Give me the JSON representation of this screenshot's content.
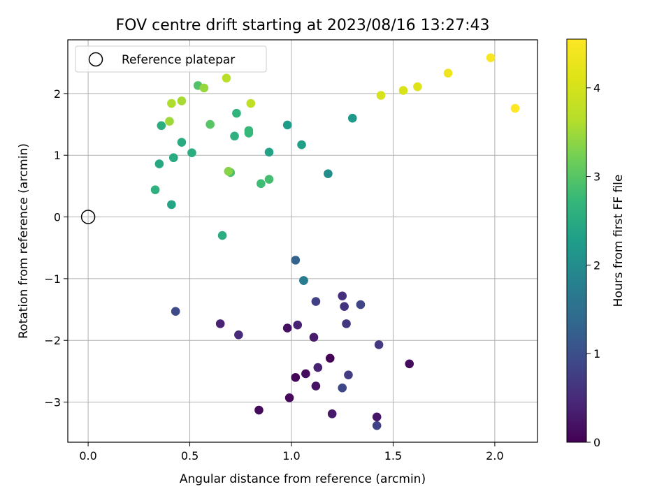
{
  "chart_data": {
    "type": "scatter",
    "title": "FOV centre drift starting at 2023/08/16 13:27:43",
    "xlabel": "Angular distance from reference (arcmin)",
    "ylabel": "Rotation from reference (arcmin)",
    "xlim": [
      -0.1,
      2.21
    ],
    "ylim": [
      -3.65,
      2.87
    ],
    "xticks": [
      0.0,
      0.5,
      1.0,
      1.5,
      2.0
    ],
    "xtick_labels": [
      "0.0",
      "0.5",
      "1.0",
      "1.5",
      "2.0"
    ],
    "yticks": [
      -3,
      -2,
      -1,
      0,
      1,
      2
    ],
    "ytick_labels": [
      "−3",
      "−2",
      "−1",
      "0",
      "1",
      "2"
    ],
    "grid": true,
    "legend": {
      "position": "top-left",
      "entries": [
        "Reference platepar"
      ]
    },
    "reference_point": {
      "x": 0.0,
      "y": 0.0
    },
    "colorbar": {
      "label": "Hours from first FF file",
      "range": [
        0,
        4.55
      ],
      "ticks": [
        0,
        1,
        2,
        3,
        4
      ],
      "tick_labels": [
        "0",
        "1",
        "2",
        "3",
        "4"
      ],
      "colormap": "viridis"
    },
    "points": [
      {
        "x": 0.84,
        "y": -3.13,
        "c": 0.1
      },
      {
        "x": 0.99,
        "y": -2.93,
        "c": 0.08
      },
      {
        "x": 1.02,
        "y": -2.6,
        "c": 0.05
      },
      {
        "x": 1.07,
        "y": -2.54,
        "c": 0.12
      },
      {
        "x": 1.19,
        "y": -2.29,
        "c": 0.02
      },
      {
        "x": 1.2,
        "y": -3.19,
        "c": 0.28
      },
      {
        "x": 1.42,
        "y": -3.24,
        "c": 0.25
      },
      {
        "x": 1.12,
        "y": -2.74,
        "c": 0.2
      },
      {
        "x": 1.58,
        "y": -2.38,
        "c": 0.12
      },
      {
        "x": 1.13,
        "y": -2.44,
        "c": 0.4
      },
      {
        "x": 0.98,
        "y": -1.8,
        "c": 0.18
      },
      {
        "x": 1.11,
        "y": -1.95,
        "c": 0.3
      },
      {
        "x": 1.03,
        "y": -1.75,
        "c": 0.38
      },
      {
        "x": 0.65,
        "y": -1.73,
        "c": 0.4
      },
      {
        "x": 0.74,
        "y": -1.91,
        "c": 0.5
      },
      {
        "x": 1.28,
        "y": -2.56,
        "c": 0.75
      },
      {
        "x": 1.25,
        "y": -2.77,
        "c": 0.9
      },
      {
        "x": 1.42,
        "y": -3.38,
        "c": 0.82
      },
      {
        "x": 1.43,
        "y": -2.07,
        "c": 0.7
      },
      {
        "x": 1.27,
        "y": -1.73,
        "c": 0.65
      },
      {
        "x": 1.26,
        "y": -1.45,
        "c": 0.62
      },
      {
        "x": 1.25,
        "y": -1.28,
        "c": 0.55
      },
      {
        "x": 1.12,
        "y": -1.37,
        "c": 0.8
      },
      {
        "x": 1.34,
        "y": -1.42,
        "c": 0.85
      },
      {
        "x": 0.43,
        "y": -1.53,
        "c": 0.95
      },
      {
        "x": 1.02,
        "y": -0.7,
        "c": 1.3
      },
      {
        "x": 1.06,
        "y": -1.03,
        "c": 1.6
      },
      {
        "x": 1.06,
        "y": -1.03,
        "c": 1.7
      },
      {
        "x": 1.18,
        "y": 0.7,
        "c": 2.0
      },
      {
        "x": 1.3,
        "y": 1.6,
        "c": 2.2
      },
      {
        "x": 0.98,
        "y": 1.49,
        "c": 2.25
      },
      {
        "x": 1.05,
        "y": 1.17,
        "c": 2.3
      },
      {
        "x": 0.89,
        "y": 1.05,
        "c": 2.35
      },
      {
        "x": 0.41,
        "y": 0.2,
        "c": 2.4
      },
      {
        "x": 0.66,
        "y": -0.3,
        "c": 2.55
      },
      {
        "x": 0.33,
        "y": 0.44,
        "c": 2.6
      },
      {
        "x": 0.35,
        "y": 0.86,
        "c": 2.45
      },
      {
        "x": 0.42,
        "y": 0.96,
        "c": 2.5
      },
      {
        "x": 0.46,
        "y": 1.21,
        "c": 2.5
      },
      {
        "x": 0.51,
        "y": 1.04,
        "c": 2.55
      },
      {
        "x": 0.36,
        "y": 1.48,
        "c": 2.55
      },
      {
        "x": 0.72,
        "y": 1.31,
        "c": 2.6
      },
      {
        "x": 0.73,
        "y": 1.68,
        "c": 2.65
      },
      {
        "x": 0.79,
        "y": 1.36,
        "c": 2.7
      },
      {
        "x": 0.79,
        "y": 1.4,
        "c": 2.75
      },
      {
        "x": 0.85,
        "y": 0.54,
        "c": 2.8
      },
      {
        "x": 0.89,
        "y": 0.61,
        "c": 2.85
      },
      {
        "x": 0.7,
        "y": 0.72,
        "c": 2.9
      },
      {
        "x": 0.54,
        "y": 2.13,
        "c": 2.95
      },
      {
        "x": 0.6,
        "y": 1.5,
        "c": 3.0
      },
      {
        "x": 0.69,
        "y": 0.74,
        "c": 3.35
      },
      {
        "x": 0.4,
        "y": 1.55,
        "c": 3.5
      },
      {
        "x": 0.57,
        "y": 2.09,
        "c": 3.45
      },
      {
        "x": 0.46,
        "y": 1.88,
        "c": 3.55
      },
      {
        "x": 0.41,
        "y": 1.84,
        "c": 3.6
      },
      {
        "x": 0.68,
        "y": 2.25,
        "c": 3.7
      },
      {
        "x": 0.8,
        "y": 1.84,
        "c": 3.75
      },
      {
        "x": 1.44,
        "y": 1.97,
        "c": 4.0
      },
      {
        "x": 1.55,
        "y": 2.05,
        "c": 4.05
      },
      {
        "x": 1.62,
        "y": 2.11,
        "c": 4.1
      },
      {
        "x": 1.77,
        "y": 2.33,
        "c": 4.35
      },
      {
        "x": 1.98,
        "y": 2.58,
        "c": 4.48
      },
      {
        "x": 2.1,
        "y": 1.76,
        "c": 4.55
      }
    ]
  }
}
